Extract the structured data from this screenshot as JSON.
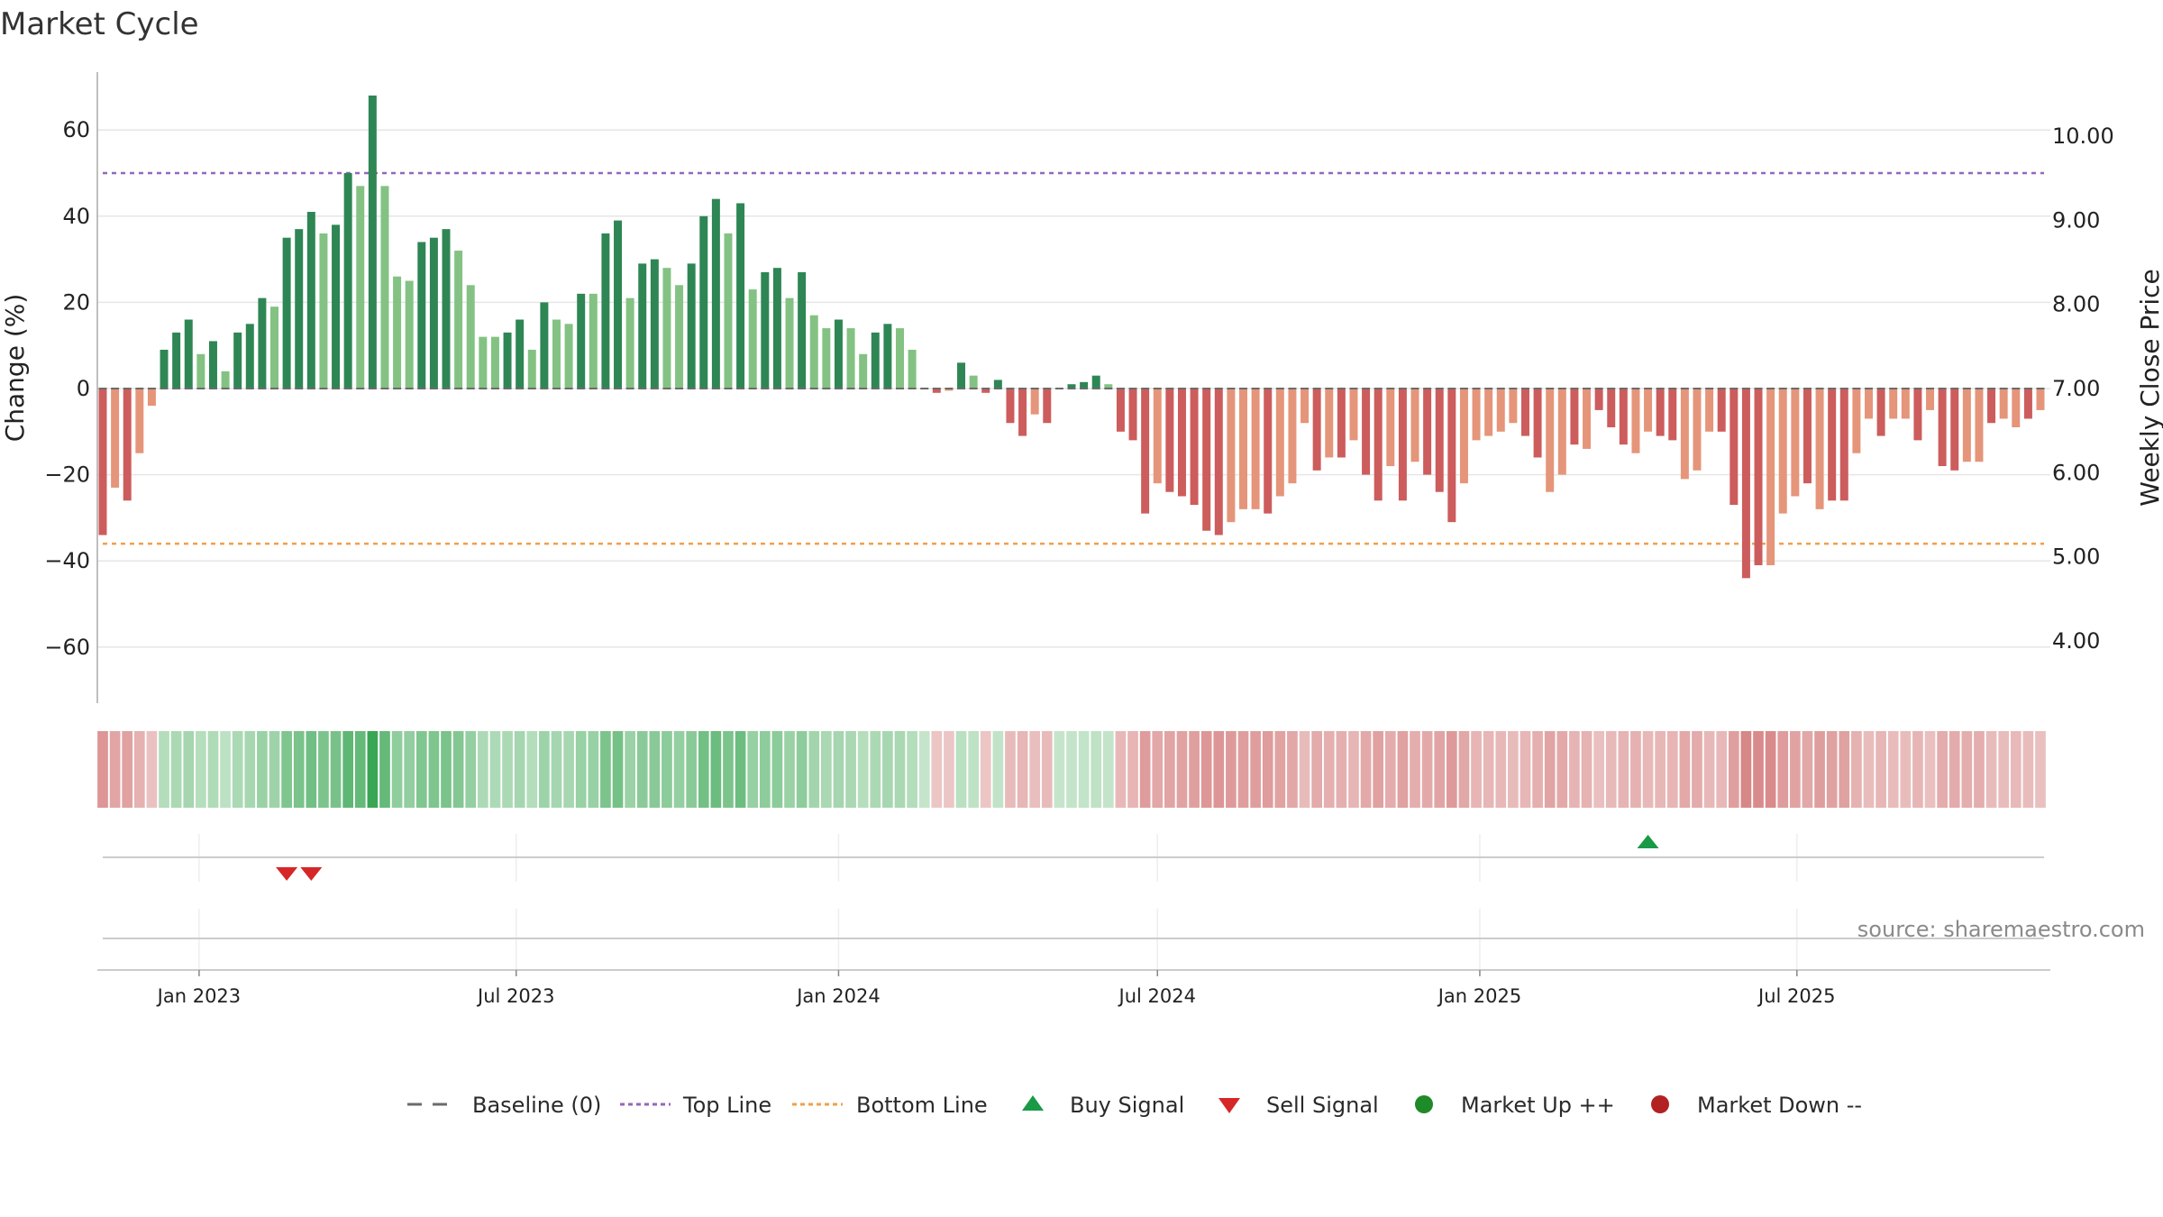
{
  "title": "Market Cycle",
  "source": "source: sharemaestro.com",
  "colors": {
    "up_strong": "#2e8654",
    "up_light": "#83c283",
    "down_strong": "#cd5c5c",
    "down_light": "#e5957a",
    "top_line": "#9467bd",
    "bottom_line": "#f0a04b",
    "baseline": "#6b6b6b",
    "buy_signal": "#1a9a46",
    "sell_signal": "#d62728",
    "market_up": "#1e8a28",
    "market_down": "#b22222",
    "grid": "#e6e6e6"
  },
  "chart_data": {
    "type": "bar",
    "title": "Market Cycle",
    "ylabel": "Change (%)",
    "y2label": "Weekly Close Price",
    "ylim": [
      -73,
      73
    ],
    "y2lim": [
      3.0,
      10.8
    ],
    "yticks": [
      60,
      40,
      20,
      0,
      -20,
      -40,
      -60
    ],
    "ytick_labels": [
      "60",
      "40",
      "20",
      "0",
      "−20",
      "−40",
      "−60"
    ],
    "y2ticks": [
      10.0,
      9.0,
      8.0,
      7.0,
      6.0,
      5.0,
      4.0
    ],
    "y2tick_labels": [
      "10.00",
      "9.00",
      "8.00",
      "7.00",
      "6.00",
      "5.00",
      "4.00"
    ],
    "x_start": "2022-11-07",
    "x_end": "2025-09-22",
    "xticks": [
      "2023-01-01",
      "2023-07-01",
      "2024-01-01",
      "2024-07-01",
      "2025-01-01",
      "2025-07-01"
    ],
    "xtick_labels": [
      "Jan 2023",
      "Jul 2023",
      "Jan 2024",
      "Jul 2024",
      "Jan 2025",
      "Jul 2025"
    ],
    "grid": true,
    "top_line": 50,
    "bottom_line": -36,
    "baseline": 0,
    "series": [
      {
        "name": "Change (%)",
        "start": "2022-11-07",
        "interval_days": 7,
        "values": [
          -34,
          -23,
          -26,
          -15,
          -4,
          9,
          13,
          16,
          8,
          11,
          4,
          13,
          15,
          21,
          19,
          35,
          37,
          41,
          36,
          38,
          50,
          47,
          68,
          47,
          26,
          25,
          34,
          35,
          37,
          32,
          24,
          12,
          12,
          13,
          16,
          9,
          20,
          16,
          15,
          22,
          22,
          36,
          39,
          21,
          29,
          30,
          28,
          24,
          29,
          40,
          44,
          36,
          43,
          23,
          27,
          28,
          21,
          27,
          17,
          14,
          16,
          14,
          8,
          13,
          15,
          14,
          9,
          0,
          -1,
          -0.5,
          6,
          3,
          -1,
          2,
          -8,
          -11,
          -6,
          -8,
          0,
          1,
          1.5,
          3,
          1,
          -10,
          -12,
          -29,
          -22,
          -24,
          -25,
          -27,
          -33,
          -34,
          -31,
          -28,
          -28,
          -29,
          -25,
          -22,
          -8,
          -19,
          -16,
          -16,
          -12,
          -20,
          -26,
          -18,
          -26,
          -17,
          -20,
          -24,
          -31,
          -22,
          -12,
          -11,
          -10,
          -8,
          -11,
          -16,
          -24,
          -20,
          -13,
          -14,
          -5,
          -9,
          -13,
          -15,
          -10,
          -11,
          -12,
          -21,
          -19,
          -10,
          -10,
          -27,
          -44,
          -41,
          -41,
          -29,
          -25,
          -22,
          -28,
          -26,
          -26,
          -15,
          -7,
          -11,
          -7,
          -7,
          -12,
          -5,
          -18,
          -19,
          -17,
          -17,
          -8,
          -7,
          -9,
          -7,
          -5
        ],
        "shade": [
          1,
          0,
          1,
          0,
          0,
          1,
          1,
          1,
          0,
          1,
          0,
          1,
          1,
          1,
          0,
          1,
          1,
          1,
          0,
          1,
          1,
          0,
          1,
          0,
          0,
          0,
          1,
          1,
          1,
          0,
          0,
          0,
          0,
          1,
          1,
          0,
          1,
          0,
          0,
          1,
          0,
          1,
          1,
          0,
          1,
          1,
          0,
          0,
          1,
          1,
          1,
          0,
          1,
          0,
          1,
          1,
          0,
          1,
          0,
          0,
          1,
          0,
          0,
          1,
          1,
          0,
          0,
          1,
          1,
          0,
          1,
          0,
          1,
          1,
          1,
          1,
          0,
          1,
          0,
          1,
          1,
          1,
          0,
          1,
          1,
          1,
          0,
          1,
          1,
          1,
          1,
          1,
          0,
          0,
          0,
          1,
          0,
          0,
          0,
          1,
          0,
          1,
          0,
          1,
          1,
          0,
          1,
          0,
          1,
          1,
          1,
          0,
          0,
          0,
          0,
          0,
          1,
          1,
          0,
          0,
          1,
          0,
          1,
          1,
          1,
          0,
          0,
          1,
          1,
          0,
          0,
          0,
          1,
          1,
          1,
          1,
          0,
          0,
          0,
          1,
          0,
          1,
          1,
          0,
          0,
          1,
          0,
          0,
          1,
          0,
          1,
          1,
          0,
          0,
          1,
          0,
          0,
          1,
          0,
          0
        ]
      }
    ],
    "sell_signals": [
      "2023-02-20",
      "2023-03-06"
    ],
    "buy_signals": [
      "2025-04-07"
    ],
    "legend": [
      "Baseline (0)",
      "Top Line",
      "Bottom Line",
      "Buy Signal",
      "Sell Signal",
      "Market Up ++",
      "Market Down --"
    ],
    "legend_position": "bottom-center"
  }
}
